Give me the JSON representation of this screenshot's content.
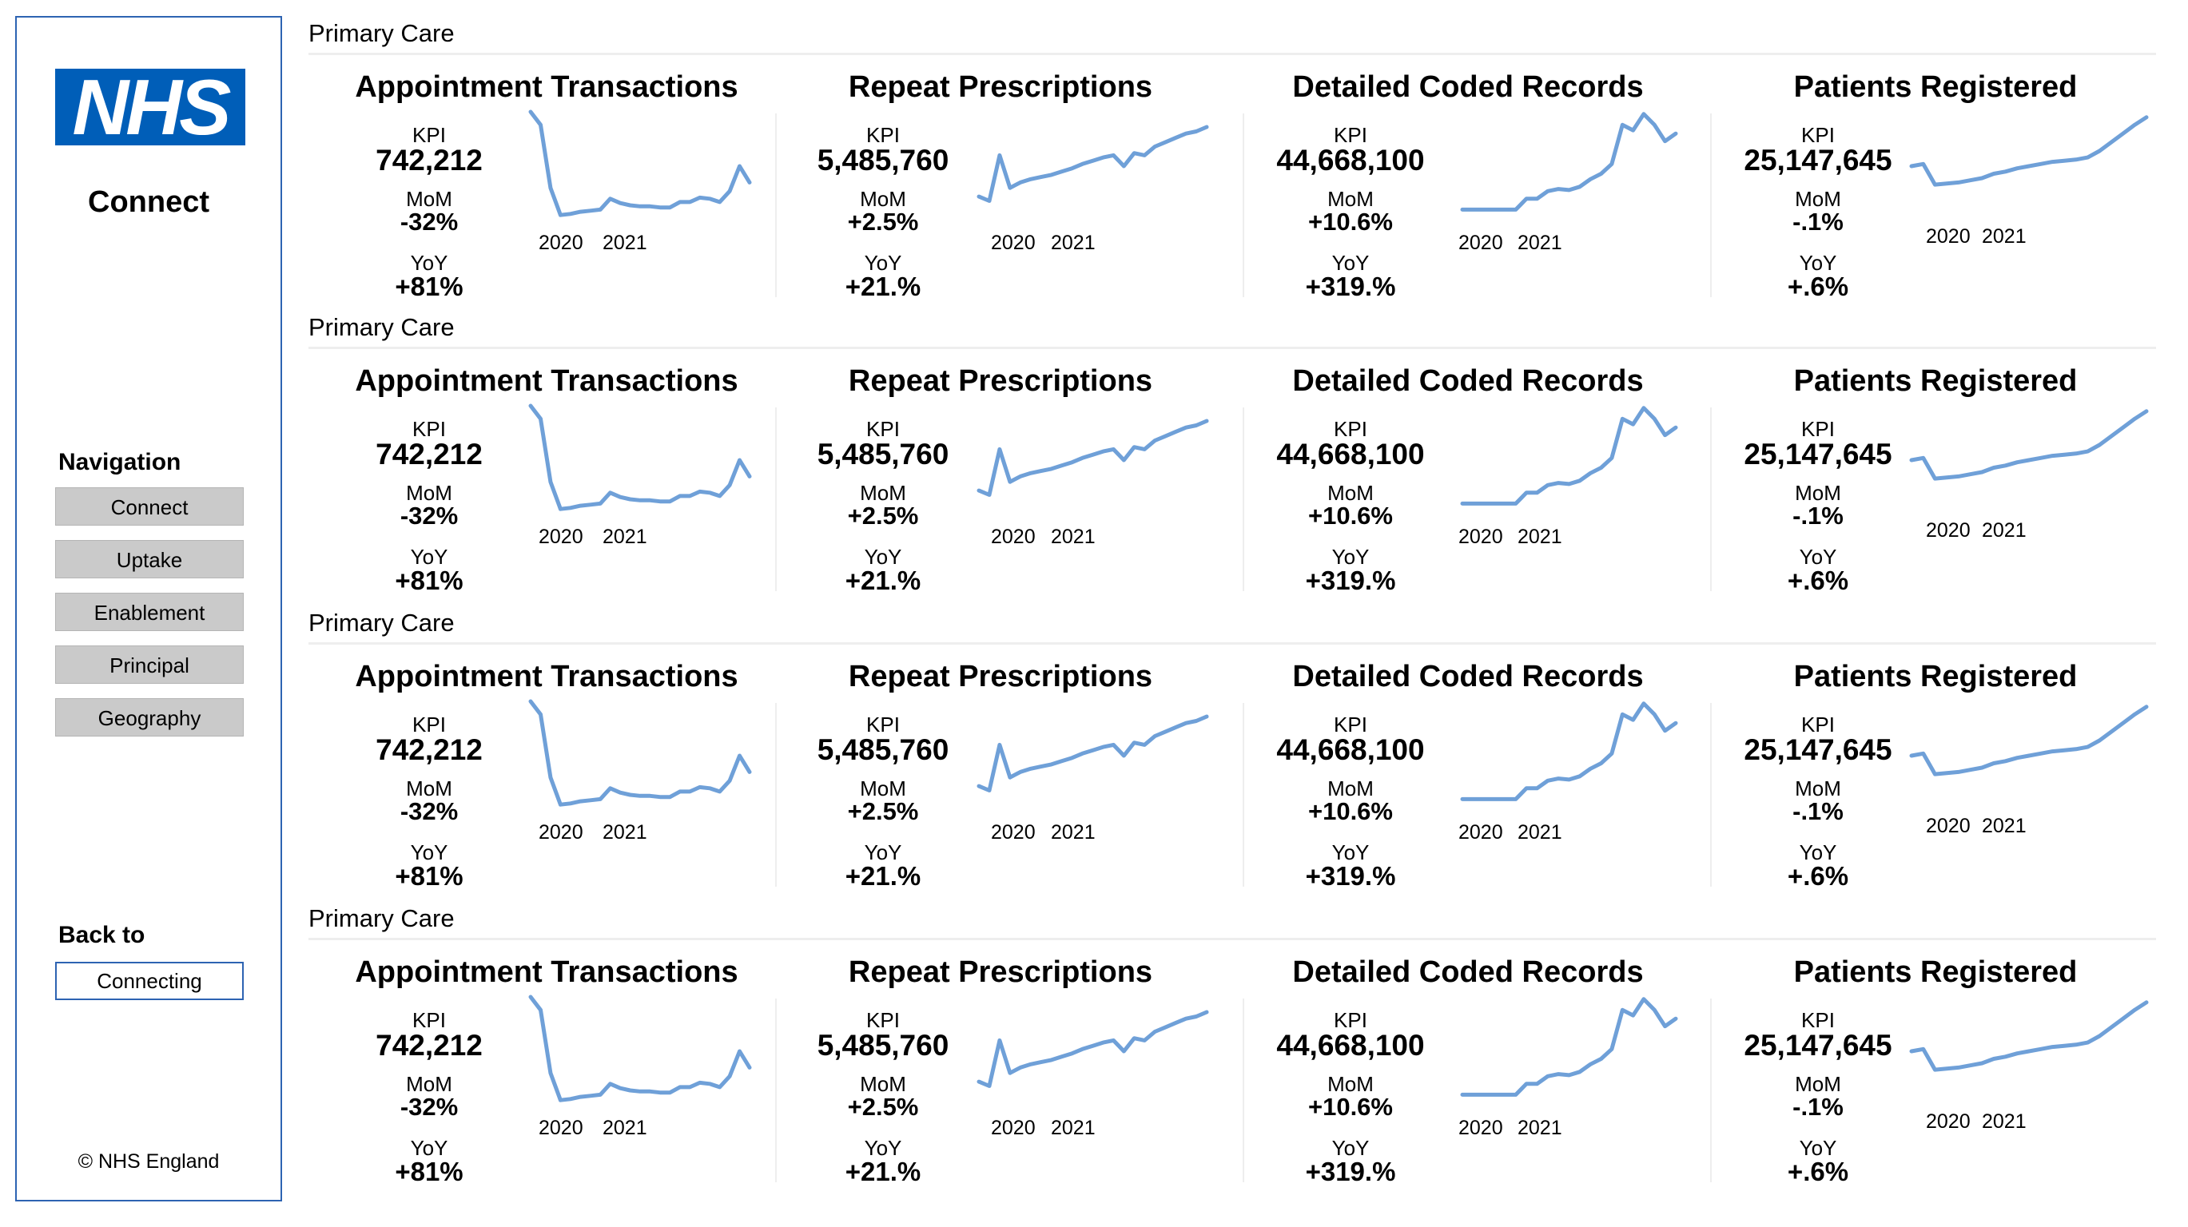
{
  "sidebar": {
    "logo_text": "NHS",
    "app_name": "Connect",
    "navigation_label": "Navigation",
    "nav_items": [
      "Connect",
      "Uptake",
      "Enablement",
      "Principal",
      "Geography"
    ],
    "back_label": "Back to",
    "back_button": "Connecting",
    "copyright": "© NHS England",
    "colors": {
      "brand_blue": "#005eb8",
      "border_blue": "#2d63b2",
      "button_gray": "#cacaca"
    }
  },
  "sections": [
    {
      "title": "Primary Care",
      "cards": [
        {
          "title": "Appointment Transactions",
          "kpi_label": "KPI",
          "kpi": "742,212",
          "mom_label": "MoM",
          "mom": "-32%",
          "yoy_label": "YoY",
          "yoy": "+81%",
          "year_labels": [
            "2020",
            "2021"
          ]
        },
        {
          "title": "Repeat Prescriptions",
          "kpi_label": "KPI",
          "kpi": "5,485,760",
          "mom_label": "MoM",
          "mom": "+2.5%",
          "yoy_label": "YoY",
          "yoy": "+21.%",
          "year_labels": [
            "2020",
            "2021"
          ]
        },
        {
          "title": "Detailed Coded Records",
          "kpi_label": "KPI",
          "kpi": "44,668,100",
          "mom_label": "MoM",
          "mom": "+10.6%",
          "yoy_label": "YoY",
          "yoy": "+319.%",
          "year_labels": [
            "2020",
            "2021"
          ]
        },
        {
          "title": "Patients Registered",
          "kpi_label": "KPI",
          "kpi": "25,147,645",
          "mom_label": "MoM",
          "mom": "-.1%",
          "yoy_label": "YoY",
          "yoy": "+.6%",
          "year_labels": [
            "2020",
            "2021"
          ]
        }
      ]
    },
    {
      "title": "Primary Care",
      "cards": [
        {
          "title": "Appointment Transactions",
          "kpi_label": "KPI",
          "kpi": "742,212",
          "mom_label": "MoM",
          "mom": "-32%",
          "yoy_label": "YoY",
          "yoy": "+81%",
          "year_labels": [
            "2020",
            "2021"
          ]
        },
        {
          "title": "Repeat Prescriptions",
          "kpi_label": "KPI",
          "kpi": "5,485,760",
          "mom_label": "MoM",
          "mom": "+2.5%",
          "yoy_label": "YoY",
          "yoy": "+21.%",
          "year_labels": [
            "2020",
            "2021"
          ]
        },
        {
          "title": "Detailed Coded Records",
          "kpi_label": "KPI",
          "kpi": "44,668,100",
          "mom_label": "MoM",
          "mom": "+10.6%",
          "yoy_label": "YoY",
          "yoy": "+319.%",
          "year_labels": [
            "2020",
            "2021"
          ]
        },
        {
          "title": "Patients Registered",
          "kpi_label": "KPI",
          "kpi": "25,147,645",
          "mom_label": "MoM",
          "mom": "-.1%",
          "yoy_label": "YoY",
          "yoy": "+.6%",
          "year_labels": [
            "2020",
            "2021"
          ]
        }
      ]
    },
    {
      "title": "Primary Care",
      "cards": [
        {
          "title": "Appointment Transactions",
          "kpi_label": "KPI",
          "kpi": "742,212",
          "mom_label": "MoM",
          "mom": "-32%",
          "yoy_label": "YoY",
          "yoy": "+81%",
          "year_labels": [
            "2020",
            "2021"
          ]
        },
        {
          "title": "Repeat Prescriptions",
          "kpi_label": "KPI",
          "kpi": "5,485,760",
          "mom_label": "MoM",
          "mom": "+2.5%",
          "yoy_label": "YoY",
          "yoy": "+21.%",
          "year_labels": [
            "2020",
            "2021"
          ]
        },
        {
          "title": "Detailed Coded Records",
          "kpi_label": "KPI",
          "kpi": "44,668,100",
          "mom_label": "MoM",
          "mom": "+10.6%",
          "yoy_label": "YoY",
          "yoy": "+319.%",
          "year_labels": [
            "2020",
            "2021"
          ]
        },
        {
          "title": "Patients Registered",
          "kpi_label": "KPI",
          "kpi": "25,147,645",
          "mom_label": "MoM",
          "mom": "-.1%",
          "yoy_label": "YoY",
          "yoy": "+.6%",
          "year_labels": [
            "2020",
            "2021"
          ]
        }
      ]
    },
    {
      "title": "Primary Care",
      "cards": [
        {
          "title": "Appointment Transactions",
          "kpi_label": "KPI",
          "kpi": "742,212",
          "mom_label": "MoM",
          "mom": "-32%",
          "yoy_label": "YoY",
          "yoy": "+81%",
          "year_labels": [
            "2020",
            "2021"
          ]
        },
        {
          "title": "Repeat Prescriptions",
          "kpi_label": "KPI",
          "kpi": "5,485,760",
          "mom_label": "MoM",
          "mom": "+2.5%",
          "yoy_label": "YoY",
          "yoy": "+21.%",
          "year_labels": [
            "2020",
            "2021"
          ]
        },
        {
          "title": "Detailed Coded Records",
          "kpi_label": "KPI",
          "kpi": "44,668,100",
          "mom_label": "MoM",
          "mom": "+10.6%",
          "yoy_label": "YoY",
          "yoy": "+319.%",
          "year_labels": [
            "2020",
            "2021"
          ]
        },
        {
          "title": "Patients Registered",
          "kpi_label": "KPI",
          "kpi": "25,147,645",
          "mom_label": "MoM",
          "mom": "-.1%",
          "yoy_label": "YoY",
          "yoy": "+.6%",
          "year_labels": [
            "2020",
            "2021"
          ]
        }
      ]
    }
  ],
  "sparkline_color": "#6fa0d8",
  "chart_data": [
    {
      "type": "line",
      "title": "Appointment Transactions",
      "values": [
        1.0,
        0.88,
        0.3,
        0.05,
        0.06,
        0.08,
        0.09,
        0.1,
        0.2,
        0.16,
        0.14,
        0.13,
        0.13,
        0.12,
        0.12,
        0.17,
        0.17,
        0.21,
        0.2,
        0.17,
        0.27,
        0.5,
        0.35
      ],
      "x_tick_labels": [
        "2020",
        "2021"
      ]
    },
    {
      "type": "line",
      "title": "Repeat Prescriptions",
      "values": [
        0.22,
        0.18,
        0.6,
        0.3,
        0.35,
        0.38,
        0.4,
        0.42,
        0.45,
        0.48,
        0.52,
        0.55,
        0.58,
        0.6,
        0.5,
        0.62,
        0.6,
        0.68,
        0.72,
        0.76,
        0.8,
        0.82,
        0.86
      ],
      "x_tick_labels": [
        "2020",
        "2021"
      ]
    },
    {
      "type": "line",
      "title": "Detailed Coded Records",
      "values": [
        0.1,
        0.1,
        0.1,
        0.1,
        0.1,
        0.1,
        0.2,
        0.2,
        0.27,
        0.29,
        0.28,
        0.31,
        0.38,
        0.43,
        0.52,
        0.88,
        0.83,
        0.98,
        0.88,
        0.73,
        0.8
      ],
      "x_tick_labels": [
        "2020",
        "2021"
      ]
    },
    {
      "type": "line",
      "title": "Patients Registered",
      "values": [
        0.5,
        0.52,
        0.33,
        0.34,
        0.35,
        0.37,
        0.39,
        0.43,
        0.45,
        0.48,
        0.5,
        0.52,
        0.54,
        0.55,
        0.56,
        0.58,
        0.64,
        0.72,
        0.8,
        0.88,
        0.95
      ],
      "x_tick_labels": [
        "2020",
        "2021"
      ]
    }
  ]
}
